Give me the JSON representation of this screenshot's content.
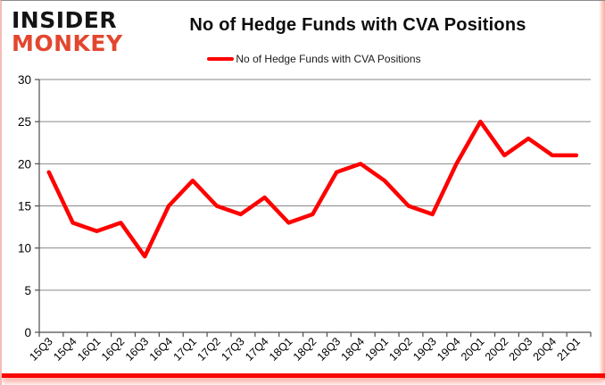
{
  "logo": {
    "line1": "INSIDER",
    "line2": "MONKEY"
  },
  "header": {
    "title": "No of Hedge Funds with CVA Positions"
  },
  "legend": {
    "label": "No of Hedge Funds with CVA Positions"
  },
  "colors": {
    "line": "#fe0000",
    "logo_black": "#141414",
    "logo_red": "#e2472e",
    "grid": "#8a8a8a",
    "axis": "#4d4d4d",
    "tick_text": "#000000",
    "bottom_bar": "#f90500"
  },
  "chart_data": {
    "type": "line",
    "title": "No of Hedge Funds with CVA Positions",
    "categories": [
      "15Q3",
      "15Q4",
      "16Q1",
      "16Q2",
      "16Q3",
      "16Q4",
      "17Q1",
      "17Q2",
      "17Q3",
      "17Q4",
      "18Q1",
      "18Q2",
      "18Q3",
      "18Q4",
      "19Q1",
      "19Q2",
      "19Q3",
      "19Q4",
      "20Q1",
      "20Q2",
      "20Q3",
      "20Q4",
      "21Q1"
    ],
    "series": [
      {
        "name": "No of Hedge Funds with CVA Positions",
        "values": [
          19,
          13,
          12,
          13,
          9,
          15,
          18,
          15,
          14,
          16,
          13,
          14,
          19,
          20,
          18,
          15,
          14,
          20,
          25,
          21,
          23,
          21,
          21
        ]
      }
    ],
    "xlabel": "",
    "ylabel": "",
    "ylim": [
      0,
      30
    ],
    "yticks": [
      0,
      5,
      10,
      15,
      20,
      25,
      30
    ],
    "grid": true,
    "legend_position": "top-center"
  }
}
